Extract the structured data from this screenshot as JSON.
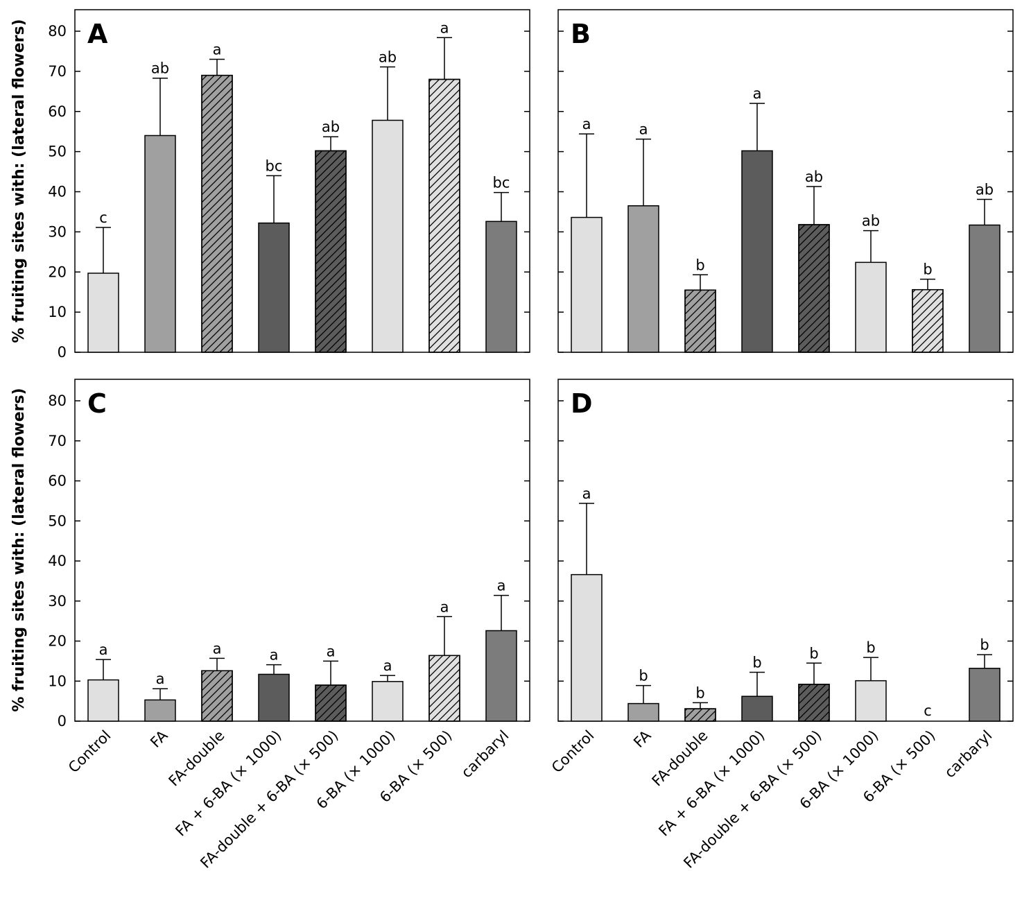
{
  "figure": {
    "ylabel": "% fruiting sites with: (lateral flowers)",
    "categories": [
      "Control",
      "FA",
      "FA-double",
      "FA + 6-BA (× 1000)",
      "FA-double + 6-BA (× 500)",
      "6-BA (× 1000)",
      "6-BA (× 500)",
      "carbaryl"
    ],
    "yticks": [
      "0",
      "10",
      "20",
      "30",
      "40",
      "50",
      "60",
      "70",
      "80"
    ]
  },
  "chart_data": [
    {
      "type": "bar",
      "panel": "A",
      "categories": [
        "Control",
        "FA",
        "FA-double",
        "FA + 6-BA (× 1000)",
        "FA-double + 6-BA (× 500)",
        "6-BA (× 1000)",
        "6-BA (× 500)",
        "carbaryl"
      ],
      "values": [
        19.7,
        54,
        69,
        32.2,
        50.2,
        57.8,
        68,
        32.6
      ],
      "errors": [
        11.4,
        14.3,
        4,
        11.8,
        3.5,
        13.3,
        10.4,
        7.2
      ],
      "letters": [
        "c",
        "ab",
        "a",
        "bc",
        "ab",
        "ab",
        "a",
        "bc"
      ],
      "ylabel": "% fruiting sites with: (lateral flowers)",
      "ylim": [
        0,
        85
      ]
    },
    {
      "type": "bar",
      "panel": "B",
      "categories": [
        "Control",
        "FA",
        "FA-double",
        "FA + 6-BA (× 1000)",
        "FA-double + 6-BA (× 500)",
        "6-BA (× 1000)",
        "6-BA (× 500)",
        "carbaryl"
      ],
      "values": [
        33.6,
        36.5,
        15.5,
        50.2,
        31.8,
        22.4,
        15.6,
        31.7
      ],
      "errors": [
        20.8,
        16.6,
        3.8,
        11.8,
        9.5,
        7.9,
        2.6,
        6.4
      ],
      "letters": [
        "a",
        "a",
        "b",
        "a",
        "ab",
        "ab",
        "b",
        "ab"
      ],
      "ylim": [
        0,
        85
      ]
    },
    {
      "type": "bar",
      "panel": "C",
      "categories": [
        "Control",
        "FA",
        "FA-double",
        "FA + 6-BA (× 1000)",
        "FA-double + 6-BA (× 500)",
        "6-BA (× 1000)",
        "6-BA (× 500)",
        "carbaryl"
      ],
      "values": [
        10.3,
        5.3,
        12.6,
        11.7,
        9,
        9.9,
        16.4,
        22.6
      ],
      "errors": [
        5.1,
        2.8,
        3.1,
        2.4,
        6,
        1.5,
        9.7,
        8.8
      ],
      "letters": [
        "a",
        "a",
        "a",
        "a",
        "a",
        "a",
        "a",
        "a"
      ],
      "ylabel": "% fruiting sites with: (lateral flowers)",
      "ylim": [
        0,
        85
      ]
    },
    {
      "type": "bar",
      "panel": "D",
      "categories": [
        "Control",
        "FA",
        "FA-double",
        "FA + 6-BA (× 1000)",
        "FA-double + 6-BA (× 500)",
        "6-BA (× 1000)",
        "6-BA (× 500)",
        "carbaryl"
      ],
      "values": [
        36.6,
        4.4,
        3.1,
        6.2,
        9.2,
        10.1,
        0,
        13.2
      ],
      "errors": [
        17.8,
        4.5,
        1.5,
        6,
        5.3,
        5.8,
        0,
        3.4
      ],
      "letters": [
        "a",
        "b",
        "b",
        "b",
        "b",
        "b",
        "c",
        "b"
      ],
      "ylim": [
        0,
        85
      ]
    }
  ],
  "bar_styles": [
    {
      "fill": "#e0e0e0",
      "hatch": false
    },
    {
      "fill": "#a0a0a0",
      "hatch": false
    },
    {
      "fill": "#a0a0a0",
      "hatch": true
    },
    {
      "fill": "#5c5c5c",
      "hatch": false
    },
    {
      "fill": "#5c5c5c",
      "hatch": true
    },
    {
      "fill": "#e0e0e0",
      "hatch": false
    },
    {
      "fill": "#e0e0e0",
      "hatch": true
    },
    {
      "fill": "#7c7c7c",
      "hatch": false
    }
  ]
}
